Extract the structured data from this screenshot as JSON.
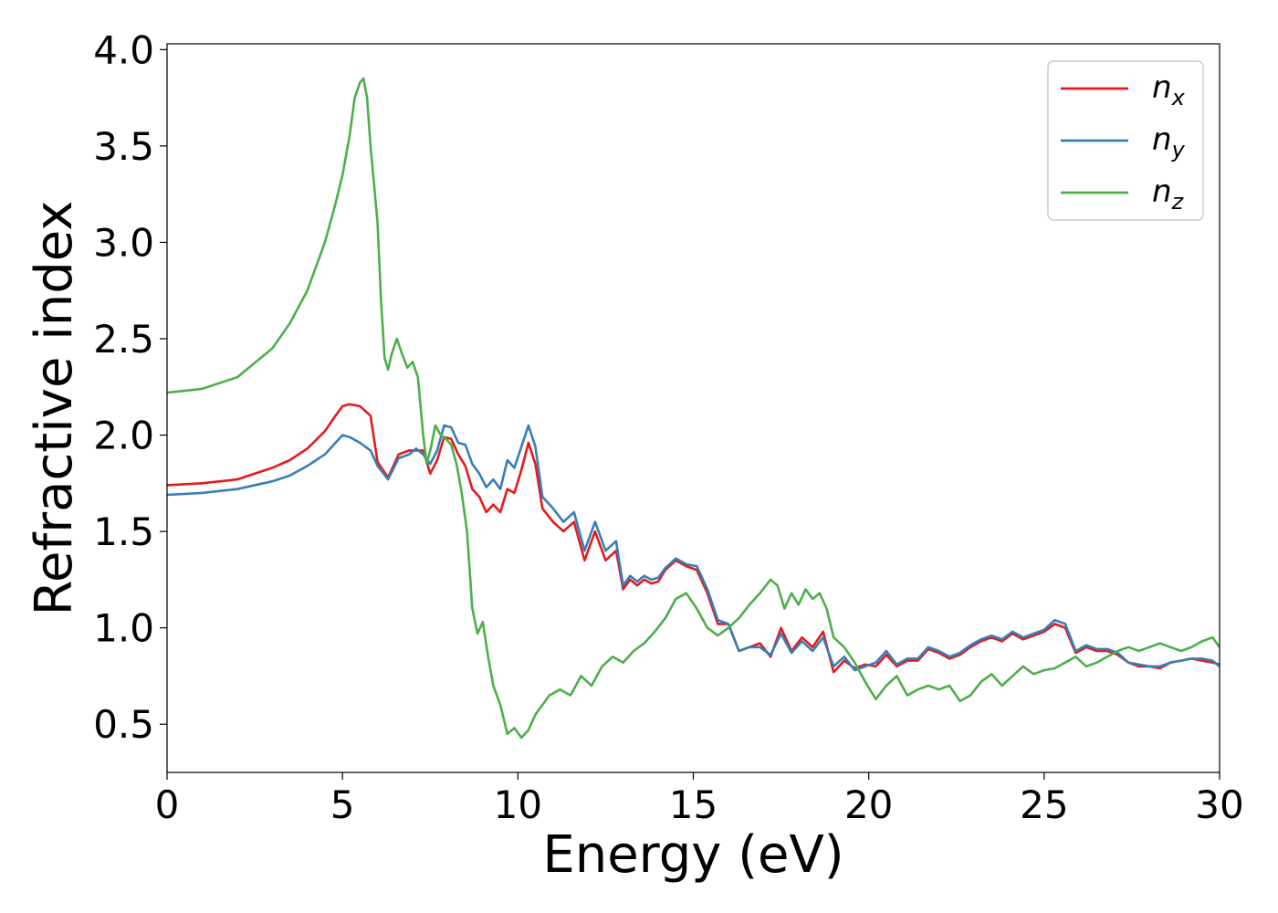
{
  "chart_data": {
    "type": "line",
    "title": "",
    "xlabel": "Energy (eV)",
    "ylabel": "Refractive index",
    "xlim": [
      0,
      30
    ],
    "ylim": [
      0.25,
      4.03
    ],
    "xticks": [
      0,
      5,
      10,
      15,
      20,
      25,
      30
    ],
    "yticks": [
      0.5,
      1.0,
      1.5,
      2.0,
      2.5,
      3.0,
      3.5,
      4.0
    ],
    "xtick_labels": [
      "0",
      "5",
      "10",
      "15",
      "20",
      "25",
      "30"
    ],
    "ytick_labels": [
      "0.5",
      "1.0",
      "1.5",
      "2.0",
      "2.5",
      "3.0",
      "3.5",
      "4.0"
    ],
    "grid": false,
    "legend_position": "top-right",
    "series": [
      {
        "name": "n_x",
        "legend_base": "n",
        "legend_sub": "x",
        "color": "#e41a1c",
        "x": [
          0,
          1,
          2,
          3,
          3.5,
          4,
          4.5,
          4.8,
          5,
          5.2,
          5.5,
          5.8,
          6,
          6.3,
          6.6,
          6.9,
          7.1,
          7.3,
          7.5,
          7.7,
          7.9,
          8.1,
          8.3,
          8.5,
          8.7,
          8.9,
          9.1,
          9.3,
          9.5,
          9.7,
          9.9,
          10.1,
          10.3,
          10.5,
          10.7,
          11,
          11.3,
          11.6,
          11.9,
          12.2,
          12.5,
          12.8,
          13,
          13.2,
          13.4,
          13.6,
          13.8,
          14,
          14.2,
          14.5,
          14.8,
          15.1,
          15.4,
          15.7,
          16,
          16.3,
          16.6,
          16.9,
          17.2,
          17.5,
          17.8,
          18.1,
          18.4,
          18.7,
          19,
          19.3,
          19.6,
          19.9,
          20.2,
          20.5,
          20.8,
          21.1,
          21.4,
          21.7,
          22,
          22.3,
          22.6,
          22.9,
          23.2,
          23.5,
          23.8,
          24.1,
          24.4,
          24.7,
          25,
          25.3,
          25.6,
          25.9,
          26.2,
          26.5,
          26.8,
          27.1,
          27.4,
          27.7,
          28,
          28.3,
          28.6,
          28.9,
          29.2,
          29.5,
          29.8,
          30
        ],
        "y": [
          1.74,
          1.75,
          1.77,
          1.83,
          1.87,
          1.93,
          2.02,
          2.1,
          2.15,
          2.16,
          2.15,
          2.1,
          1.86,
          1.78,
          1.9,
          1.92,
          1.92,
          1.92,
          1.8,
          1.87,
          1.99,
          1.98,
          1.9,
          1.84,
          1.72,
          1.68,
          1.6,
          1.64,
          1.6,
          1.72,
          1.7,
          1.82,
          1.96,
          1.85,
          1.62,
          1.55,
          1.5,
          1.55,
          1.35,
          1.5,
          1.35,
          1.4,
          1.2,
          1.25,
          1.22,
          1.25,
          1.23,
          1.24,
          1.3,
          1.35,
          1.32,
          1.3,
          1.18,
          1.02,
          1.02,
          0.88,
          0.9,
          0.92,
          0.85,
          1.0,
          0.88,
          0.95,
          0.9,
          0.98,
          0.77,
          0.83,
          0.79,
          0.81,
          0.8,
          0.86,
          0.8,
          0.83,
          0.83,
          0.89,
          0.87,
          0.84,
          0.86,
          0.9,
          0.93,
          0.95,
          0.93,
          0.97,
          0.94,
          0.96,
          0.98,
          1.02,
          1.0,
          0.87,
          0.9,
          0.88,
          0.88,
          0.86,
          0.82,
          0.8,
          0.8,
          0.79,
          0.82,
          0.83,
          0.84,
          0.83,
          0.82,
          0.81
        ]
      },
      {
        "name": "n_y",
        "legend_base": "n",
        "legend_sub": "y",
        "color": "#377eb8",
        "x": [
          0,
          1,
          2,
          3,
          3.5,
          4,
          4.5,
          4.8,
          5,
          5.2,
          5.5,
          5.8,
          6,
          6.3,
          6.6,
          6.9,
          7.1,
          7.3,
          7.5,
          7.7,
          7.9,
          8.1,
          8.3,
          8.5,
          8.7,
          8.9,
          9.1,
          9.3,
          9.5,
          9.7,
          9.9,
          10.1,
          10.3,
          10.5,
          10.7,
          11,
          11.3,
          11.6,
          11.9,
          12.2,
          12.5,
          12.8,
          13,
          13.2,
          13.4,
          13.6,
          13.8,
          14,
          14.2,
          14.5,
          14.8,
          15.1,
          15.4,
          15.7,
          16,
          16.3,
          16.6,
          16.9,
          17.2,
          17.5,
          17.8,
          18.1,
          18.4,
          18.7,
          19,
          19.3,
          19.6,
          19.9,
          20.2,
          20.5,
          20.8,
          21.1,
          21.4,
          21.7,
          22,
          22.3,
          22.6,
          22.9,
          23.2,
          23.5,
          23.8,
          24.1,
          24.4,
          24.7,
          25,
          25.3,
          25.6,
          25.9,
          26.2,
          26.5,
          26.8,
          27.1,
          27.4,
          27.7,
          28,
          28.3,
          28.6,
          28.9,
          29.2,
          29.5,
          29.8,
          30
        ],
        "y": [
          1.69,
          1.7,
          1.72,
          1.76,
          1.79,
          1.84,
          1.9,
          1.96,
          2.0,
          1.99,
          1.96,
          1.92,
          1.84,
          1.77,
          1.88,
          1.9,
          1.93,
          1.9,
          1.85,
          1.92,
          2.05,
          2.04,
          1.96,
          1.95,
          1.85,
          1.8,
          1.73,
          1.77,
          1.72,
          1.87,
          1.83,
          1.94,
          2.05,
          1.94,
          1.68,
          1.62,
          1.55,
          1.6,
          1.4,
          1.55,
          1.4,
          1.45,
          1.22,
          1.27,
          1.24,
          1.27,
          1.25,
          1.26,
          1.31,
          1.36,
          1.33,
          1.32,
          1.2,
          1.04,
          1.02,
          0.88,
          0.9,
          0.9,
          0.86,
          0.97,
          0.87,
          0.93,
          0.88,
          0.95,
          0.8,
          0.85,
          0.78,
          0.8,
          0.82,
          0.88,
          0.81,
          0.84,
          0.84,
          0.9,
          0.88,
          0.85,
          0.87,
          0.91,
          0.94,
          0.96,
          0.94,
          0.98,
          0.95,
          0.97,
          0.99,
          1.04,
          1.02,
          0.88,
          0.91,
          0.89,
          0.89,
          0.87,
          0.82,
          0.81,
          0.8,
          0.8,
          0.82,
          0.83,
          0.84,
          0.84,
          0.83,
          0.8
        ]
      },
      {
        "name": "n_z",
        "legend_base": "n",
        "legend_sub": "z",
        "color": "#4daf4a",
        "x": [
          0,
          1,
          2,
          3,
          3.5,
          4,
          4.5,
          4.8,
          5,
          5.2,
          5.35,
          5.5,
          5.6,
          5.7,
          5.8,
          5.9,
          6,
          6.1,
          6.2,
          6.3,
          6.4,
          6.55,
          6.7,
          6.85,
          7,
          7.15,
          7.3,
          7.4,
          7.5,
          7.65,
          7.8,
          7.95,
          8.1,
          8.25,
          8.4,
          8.55,
          8.7,
          8.85,
          9,
          9.15,
          9.3,
          9.5,
          9.7,
          9.9,
          10.1,
          10.3,
          10.5,
          10.7,
          10.9,
          11.2,
          11.5,
          11.8,
          12.1,
          12.4,
          12.7,
          13,
          13.3,
          13.6,
          13.9,
          14.2,
          14.5,
          14.8,
          15.1,
          15.4,
          15.7,
          16,
          16.3,
          16.6,
          16.9,
          17.2,
          17.4,
          17.6,
          17.8,
          18,
          18.2,
          18.4,
          18.6,
          18.8,
          19,
          19.3,
          19.6,
          19.9,
          20.2,
          20.5,
          20.8,
          21.1,
          21.4,
          21.7,
          22,
          22.3,
          22.6,
          22.9,
          23.2,
          23.5,
          23.8,
          24.1,
          24.4,
          24.7,
          25,
          25.3,
          25.6,
          25.9,
          26.2,
          26.5,
          26.8,
          27.1,
          27.4,
          27.7,
          28,
          28.3,
          28.6,
          28.9,
          29.2,
          29.5,
          29.8,
          30
        ],
        "y": [
          2.22,
          2.24,
          2.3,
          2.45,
          2.58,
          2.75,
          3.0,
          3.2,
          3.35,
          3.55,
          3.75,
          3.83,
          3.85,
          3.75,
          3.5,
          3.3,
          3.1,
          2.7,
          2.4,
          2.34,
          2.42,
          2.5,
          2.42,
          2.35,
          2.38,
          2.3,
          2.0,
          1.85,
          1.92,
          2.05,
          2.0,
          1.98,
          1.95,
          1.85,
          1.7,
          1.5,
          1.1,
          0.97,
          1.03,
          0.85,
          0.7,
          0.6,
          0.45,
          0.48,
          0.43,
          0.47,
          0.55,
          0.6,
          0.65,
          0.68,
          0.65,
          0.75,
          0.7,
          0.8,
          0.85,
          0.82,
          0.88,
          0.92,
          0.98,
          1.05,
          1.15,
          1.18,
          1.1,
          1.0,
          0.96,
          1.0,
          1.05,
          1.12,
          1.18,
          1.25,
          1.22,
          1.1,
          1.18,
          1.12,
          1.2,
          1.15,
          1.18,
          1.1,
          0.95,
          0.9,
          0.82,
          0.72,
          0.63,
          0.7,
          0.75,
          0.65,
          0.68,
          0.7,
          0.68,
          0.7,
          0.62,
          0.65,
          0.72,
          0.76,
          0.7,
          0.75,
          0.8,
          0.76,
          0.78,
          0.79,
          0.82,
          0.85,
          0.8,
          0.82,
          0.85,
          0.88,
          0.9,
          0.88,
          0.9,
          0.92,
          0.9,
          0.88,
          0.9,
          0.93,
          0.95,
          0.9
        ]
      }
    ]
  }
}
